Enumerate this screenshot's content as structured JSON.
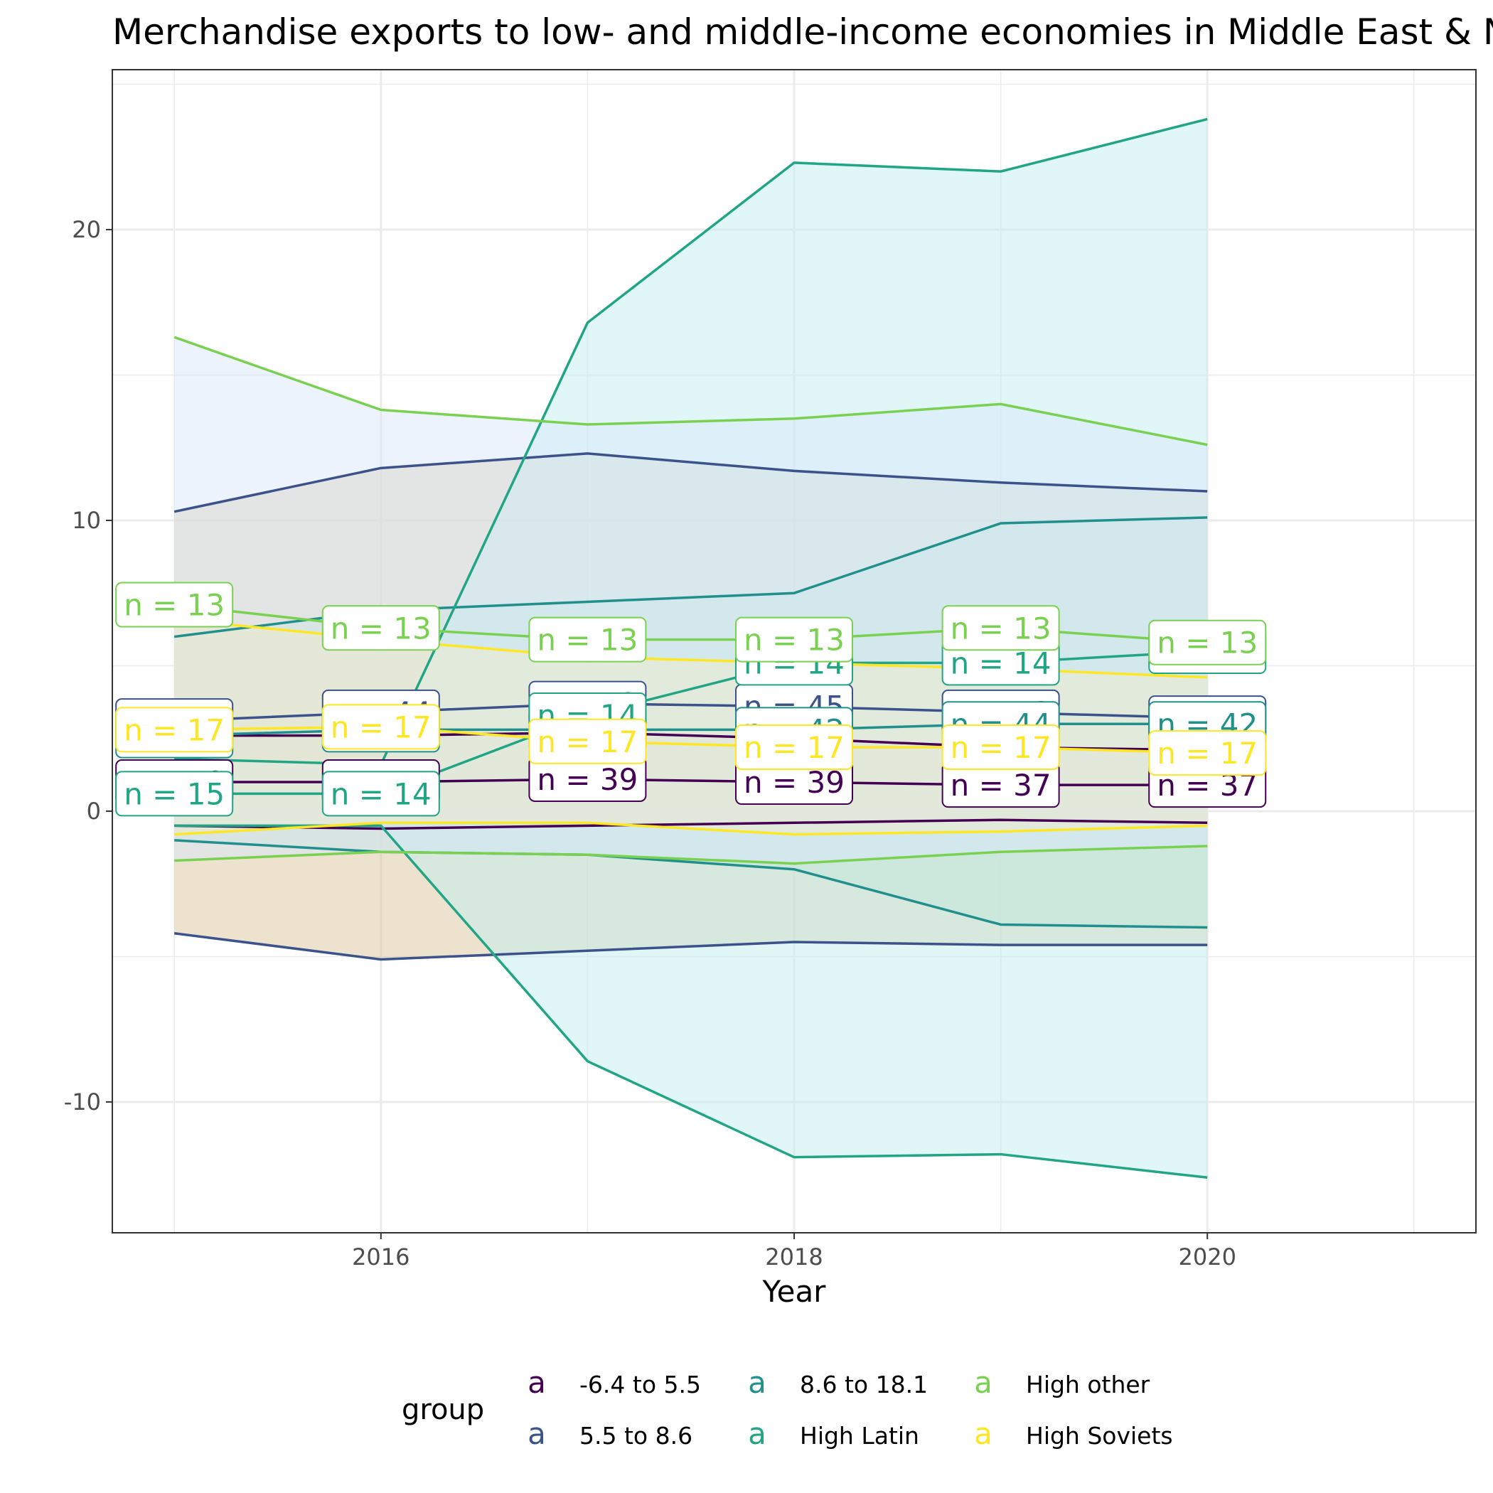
{
  "chart_data": {
    "type": "line",
    "title": "Merchandise exports to low- and middle-income economies in Middle East & North Africa (% of total merchandise exports)",
    "xlabel": "Year",
    "ylabel": "",
    "x": [
      2015,
      2016,
      2017,
      2018,
      2019,
      2020
    ],
    "x_ticks": [
      "2016",
      "2018",
      "2020"
    ],
    "y_ticks": [
      "-10",
      "0",
      "10",
      "20"
    ],
    "xlim": [
      2014.7,
      2021.3
    ],
    "ylim": [
      -14.5,
      25.5
    ],
    "grid": true,
    "legend": {
      "title": "group",
      "position": "bottom",
      "key_glyph": "a",
      "entries": [
        "-6.4 to 5.5",
        "5.5 to 8.6",
        "8.6 to 18.1",
        "High Latin",
        "High other",
        "High Soviets"
      ]
    },
    "series": [
      {
        "name": "-6.4 to 5.5",
        "color": "#440154",
        "fill": "#f4c2c2",
        "mean": [
          1.0,
          1.0,
          1.1,
          1.0,
          0.9,
          0.9
        ],
        "upper": [
          2.6,
          2.6,
          2.7,
          2.5,
          2.2,
          2.1
        ],
        "lower": [
          -0.5,
          -0.6,
          -0.5,
          -0.4,
          -0.3,
          -0.4
        ],
        "labels": [
          "n = 40",
          "n = 41",
          "n = 39",
          "n = 39",
          "n = 37",
          "n = 37"
        ]
      },
      {
        "name": "5.5 to 8.6",
        "color": "#3b528b",
        "fill": "#d9c59c",
        "mean": [
          3.1,
          3.4,
          3.7,
          3.6,
          3.4,
          3.2
        ],
        "upper": [
          10.3,
          11.8,
          12.3,
          11.7,
          11.3,
          11.0
        ],
        "lower": [
          -4.2,
          -5.1,
          -4.8,
          -4.5,
          -4.6,
          -4.6
        ],
        "labels": [
          "n = 43",
          "n = 44",
          "n = 43",
          "n = 45",
          "n = 43",
          "n = 43"
        ]
      },
      {
        "name": "8.6 to 18.1",
        "color": "#21908c",
        "fill": "#c2e3c7",
        "mean": [
          2.6,
          2.8,
          2.8,
          2.8,
          3.0,
          3.0
        ],
        "upper": [
          6.0,
          6.9,
          7.2,
          7.5,
          9.9,
          10.1
        ],
        "lower": [
          -1.0,
          -1.4,
          -1.5,
          -2.0,
          -3.9,
          -4.0
        ],
        "labels": [
          "n = 41",
          "n = 42",
          "n = 43",
          "n = 42",
          "n = 44",
          "n = 42"
        ]
      },
      {
        "name": "High Latin",
        "color": "#21a585",
        "fill": "#c2eef0",
        "mean": [
          0.6,
          0.6,
          3.3,
          5.1,
          5.1,
          5.5
        ],
        "upper": [
          1.8,
          1.6,
          16.8,
          22.3,
          22.0,
          23.8
        ],
        "lower": [
          -0.5,
          -0.5,
          -8.6,
          -11.9,
          -11.8,
          -12.6
        ],
        "labels": [
          "n = 15",
          "n = 14",
          "n = 14",
          "n = 14",
          "n = 14",
          "n = 14"
        ]
      },
      {
        "name": "High other",
        "color": "#7ad151",
        "fill": "#dae8fc",
        "mean": [
          7.1,
          6.3,
          5.9,
          5.9,
          6.3,
          5.8
        ],
        "upper": [
          16.3,
          13.8,
          13.3,
          13.5,
          14.0,
          12.6
        ],
        "lower": [
          -1.7,
          -1.4,
          -1.5,
          -1.8,
          -1.4,
          -1.2
        ],
        "labels": [
          "n = 13",
          "n = 13",
          "n = 13",
          "n = 13",
          "n = 13",
          "n = 13"
        ]
      },
      {
        "name": "High Soviets",
        "color": "#fde725",
        "fill": "#f2eccc",
        "mean": [
          2.8,
          2.9,
          2.4,
          2.2,
          2.2,
          2.0
        ],
        "upper": [
          6.6,
          5.9,
          5.3,
          5.1,
          4.9,
          4.6
        ],
        "lower": [
          -0.8,
          -0.4,
          -0.4,
          -0.8,
          -0.7,
          -0.5
        ],
        "labels": [
          "n = 17",
          "n = 17",
          "n = 17",
          "n = 17",
          "n = 17",
          "n = 17"
        ]
      }
    ]
  }
}
